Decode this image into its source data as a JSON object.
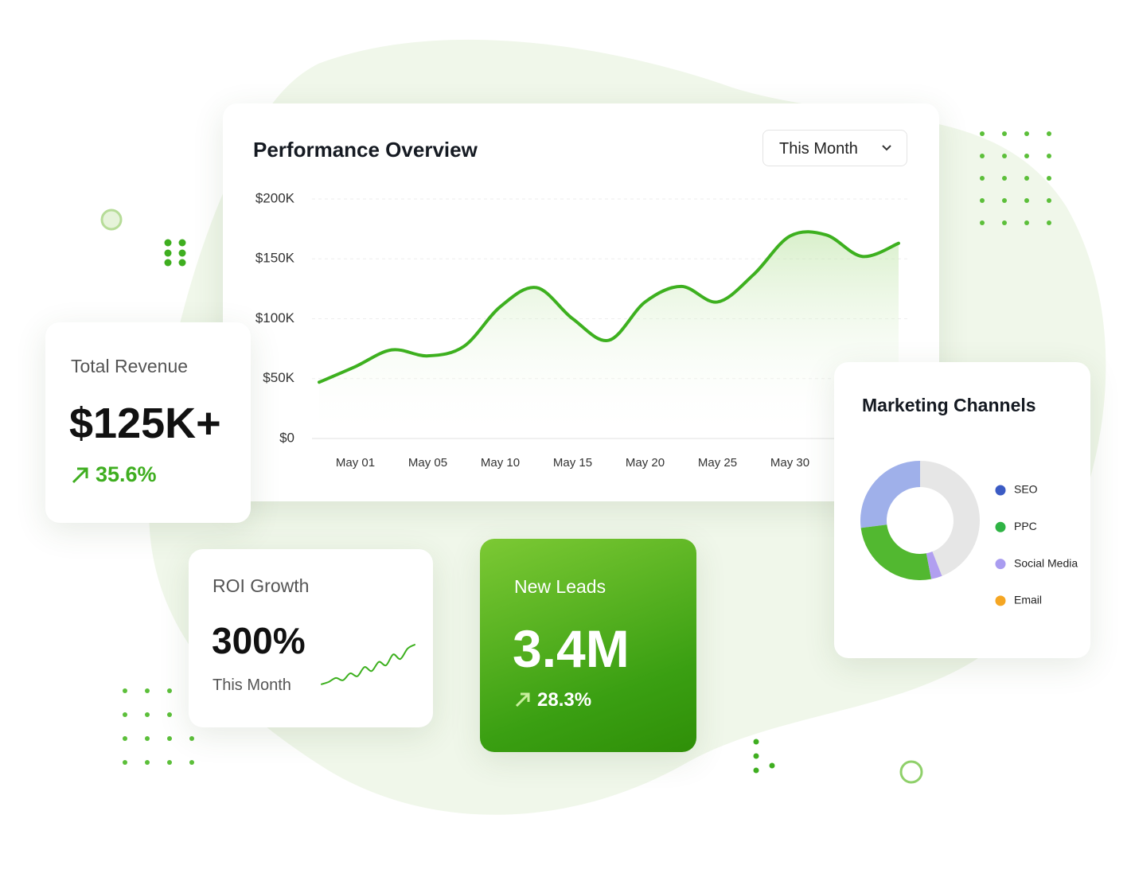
{
  "dashboard": {
    "filter": "This Month"
  },
  "cards": [
    {
      "title": "Total Revenue",
      "value": "$125K+",
      "change": "35.6%"
    },
    {
      "title": "ROI Growth",
      "value": "300%",
      "period": "This Month"
    },
    {
      "title": "New Leads",
      "value": "3.4M",
      "change": "28.3%"
    }
  ],
  "chart_data": [
    {
      "type": "line",
      "title": "Performance Overview",
      "categories": [
        null,
        "May 01",
        null,
        "May 05",
        null,
        "May 10",
        null,
        "May 15",
        null,
        "May 20",
        null,
        "May 25",
        null,
        "May 30",
        null,
        null,
        null
      ],
      "values": [
        47000,
        60000,
        74000,
        69000,
        77000,
        110000,
        126000,
        100000,
        82000,
        114000,
        127000,
        114000,
        137000,
        169000,
        170000,
        152000,
        163000
      ],
      "color": "#3db01f",
      "ylim": [
        0,
        200000
      ],
      "yticks": [
        {
          "value": 0,
          "label": "$0"
        },
        {
          "value": 50000,
          "label": "$50K"
        },
        {
          "value": 100000,
          "label": "$100K"
        },
        {
          "value": 150000,
          "label": "$150K"
        },
        {
          "value": 200000,
          "label": "$200K"
        }
      ],
      "grid": true
    },
    {
      "type": "pie",
      "title": "Marketing Channels",
      "categories": [
        "SEO",
        "PPC",
        "Social Media",
        "Email"
      ],
      "values": [
        27,
        26,
        3,
        44
      ],
      "colors": [
        "#9fb0ea",
        "#52b830",
        "#b19ff0",
        "#e6e6e6"
      ],
      "legend_colors": [
        "#3b5bc4",
        "#2fb344",
        "#a99cf0",
        "#f5a623"
      ]
    },
    {
      "type": "line",
      "values": [
        17,
        21,
        28,
        24,
        36,
        31,
        47,
        40,
        56,
        50,
        69,
        61,
        79,
        86
      ],
      "ylim": [
        0,
        100
      ],
      "color": "#3db01f"
    }
  ]
}
